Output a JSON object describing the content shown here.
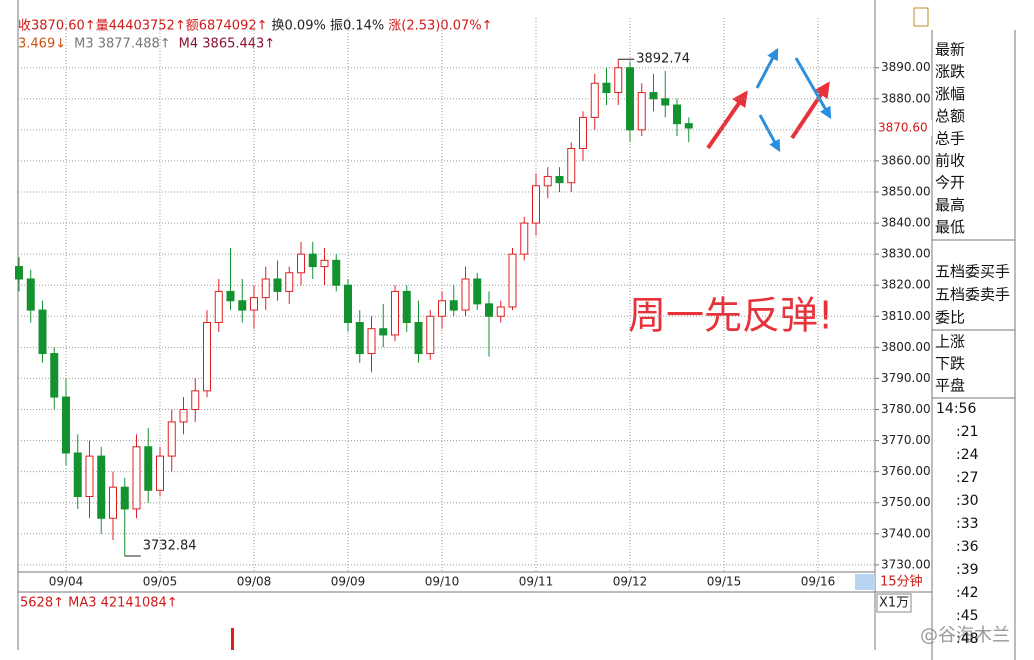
{
  "chart_data": {
    "type": "candlestick",
    "header": [
      {
        "text": "收3870.60↑量44403752↑额6874092↑",
        "color": "#d01818"
      },
      {
        "text": "换0.09% 振0.14%",
        "color": "#222222"
      },
      {
        "text": "涨(2.53)0.07%↑",
        "color": "#d01818"
      }
    ],
    "ma_header": [
      {
        "text": "3.469↓",
        "color": "#d05010"
      },
      {
        "text": "M3 3877.488↑",
        "color": "#777777"
      },
      {
        "text": "M4 3865.443↑",
        "color": "#8a1030"
      }
    ],
    "categories": [
      null,
      null,
      null,
      null,
      "09/04",
      null,
      null,
      null,
      null,
      null,
      null,
      null,
      "09/05",
      null,
      null,
      null,
      null,
      null,
      null,
      null,
      "09/08",
      null,
      null,
      null,
      null,
      null,
      null,
      null,
      "09/09",
      null,
      null,
      null,
      null,
      null,
      null,
      null,
      "09/10",
      null,
      null,
      null,
      null,
      null,
      null,
      null,
      "09/11",
      null,
      null,
      null,
      null,
      null,
      null,
      null,
      "09/12",
      null,
      null,
      null,
      null,
      null,
      null,
      null,
      "09/15",
      null,
      null,
      null,
      null,
      null,
      null,
      null,
      "09/16"
    ],
    "ohlc": [
      [
        3826,
        3829,
        3818,
        3822
      ],
      [
        3822,
        3825,
        3808,
        3812
      ],
      [
        3812,
        3815,
        3795,
        3798
      ],
      [
        3798,
        3800,
        3780,
        3784
      ],
      [
        3784,
        3790,
        3762,
        3766
      ],
      [
        3766,
        3772,
        3748,
        3752
      ],
      [
        3752,
        3770,
        3745,
        3765
      ],
      [
        3765,
        3768,
        3740,
        3745
      ],
      [
        3745,
        3760,
        3738,
        3755
      ],
      [
        3755,
        3758,
        3732.84,
        3748
      ],
      [
        3748,
        3772,
        3745,
        3768
      ],
      [
        3768,
        3774,
        3750,
        3754
      ],
      [
        3754,
        3768,
        3752,
        3765
      ],
      [
        3765,
        3780,
        3760,
        3776
      ],
      [
        3776,
        3784,
        3772,
        3780
      ],
      [
        3780,
        3790,
        3776,
        3786
      ],
      [
        3786,
        3812,
        3784,
        3808
      ],
      [
        3808,
        3822,
        3805,
        3818
      ],
      [
        3818,
        3832,
        3812,
        3815
      ],
      [
        3815,
        3822,
        3808,
        3812
      ],
      [
        3812,
        3820,
        3806,
        3816
      ],
      [
        3816,
        3826,
        3812,
        3822
      ],
      [
        3822,
        3828,
        3815,
        3818
      ],
      [
        3818,
        3826,
        3814,
        3824
      ],
      [
        3824,
        3834,
        3820,
        3830
      ],
      [
        3830,
        3834,
        3822,
        3826
      ],
      [
        3826,
        3832,
        3820,
        3828
      ],
      [
        3828,
        3830,
        3818,
        3820
      ],
      [
        3820,
        3822,
        3805,
        3808
      ],
      [
        3808,
        3812,
        3795,
        3798
      ],
      [
        3798,
        3810,
        3792,
        3806
      ],
      [
        3806,
        3814,
        3800,
        3804
      ],
      [
        3804,
        3820,
        3802,
        3818
      ],
      [
        3818,
        3820,
        3805,
        3808
      ],
      [
        3808,
        3815,
        3795,
        3798
      ],
      [
        3798,
        3812,
        3796,
        3810
      ],
      [
        3810,
        3818,
        3806,
        3815
      ],
      [
        3815,
        3820,
        3810,
        3812
      ],
      [
        3812,
        3826,
        3810,
        3822
      ],
      [
        3822,
        3824,
        3812,
        3814
      ],
      [
        3814,
        3818,
        3797,
        3810
      ],
      [
        3810,
        3815,
        3808,
        3813
      ],
      [
        3813,
        3832,
        3812,
        3830
      ],
      [
        3830,
        3842,
        3828,
        3840
      ],
      [
        3840,
        3856,
        3836,
        3852
      ],
      [
        3852,
        3858,
        3848,
        3855
      ],
      [
        3855,
        3858,
        3850,
        3853
      ],
      [
        3853,
        3866,
        3850,
        3864
      ],
      [
        3864,
        3876,
        3860,
        3874
      ],
      [
        3874,
        3888,
        3870,
        3885
      ],
      [
        3885,
        3890,
        3878,
        3882
      ],
      [
        3882,
        3892.74,
        3878,
        3890
      ],
      [
        3890,
        3892,
        3866,
        3870
      ],
      [
        3870,
        3885,
        3868,
        3882
      ],
      [
        3882,
        3888,
        3876,
        3880
      ],
      [
        3880,
        3889,
        3874,
        3878
      ],
      [
        3878,
        3880,
        3868,
        3872
      ],
      [
        3872,
        3874,
        3866,
        3870.6
      ],
      null,
      null,
      null,
      null,
      null,
      null,
      null,
      null,
      null,
      null,
      null
    ],
    "ylim": [
      3727.7,
      3906
    ],
    "yticks": [
      {
        "value": 3730,
        "label": "3730.00"
      },
      {
        "value": 3740,
        "label": "3740.00"
      },
      {
        "value": 3750,
        "label": "3750.00"
      },
      {
        "value": 3760,
        "label": "3760.00"
      },
      {
        "value": 3770,
        "label": "3770.00"
      },
      {
        "value": 3780,
        "label": "3780.00"
      },
      {
        "value": 3790,
        "label": "3790.00"
      },
      {
        "value": 3800,
        "label": "3800.00"
      },
      {
        "value": 3810,
        "label": "3810.00"
      },
      {
        "value": 3820,
        "label": "3820.00"
      },
      {
        "value": 3830,
        "label": "3830.00"
      },
      {
        "value": 3840,
        "label": "3840.00"
      },
      {
        "value": 3850,
        "label": "3850.00"
      },
      {
        "value": 3860,
        "label": "3860.00"
      },
      {
        "value": 3870,
        "label": "3870.00"
      },
      {
        "value": 3880,
        "label": "3880.00"
      },
      {
        "value": 3890,
        "label": "3890.00"
      }
    ],
    "last_price": {
      "value": 3870.6,
      "label": "3870.60"
    },
    "up_color": "#e02020",
    "down_color": "#13922f",
    "annotation": "周一先反弹!",
    "period": "15分钟",
    "volume_header": "5628↑ MA3 42141084↑",
    "volume_unit": "X1万"
  },
  "side_panel": {
    "quote_labels": [
      "最新",
      "涨跌",
      "涨幅",
      "总额",
      "总手",
      "前收",
      "今开",
      "最高",
      "最低"
    ],
    "order_labels": [
      "五档委买手",
      "五档委卖手",
      "委比"
    ],
    "breadth_labels": [
      "上涨",
      "下跌",
      "平盘"
    ],
    "times": [
      "14:56",
      ":21",
      ":24",
      ":27",
      ":30",
      ":33",
      ":36",
      ":39",
      ":42",
      ":45",
      ":48"
    ]
  },
  "watermark": "@谷海木兰"
}
